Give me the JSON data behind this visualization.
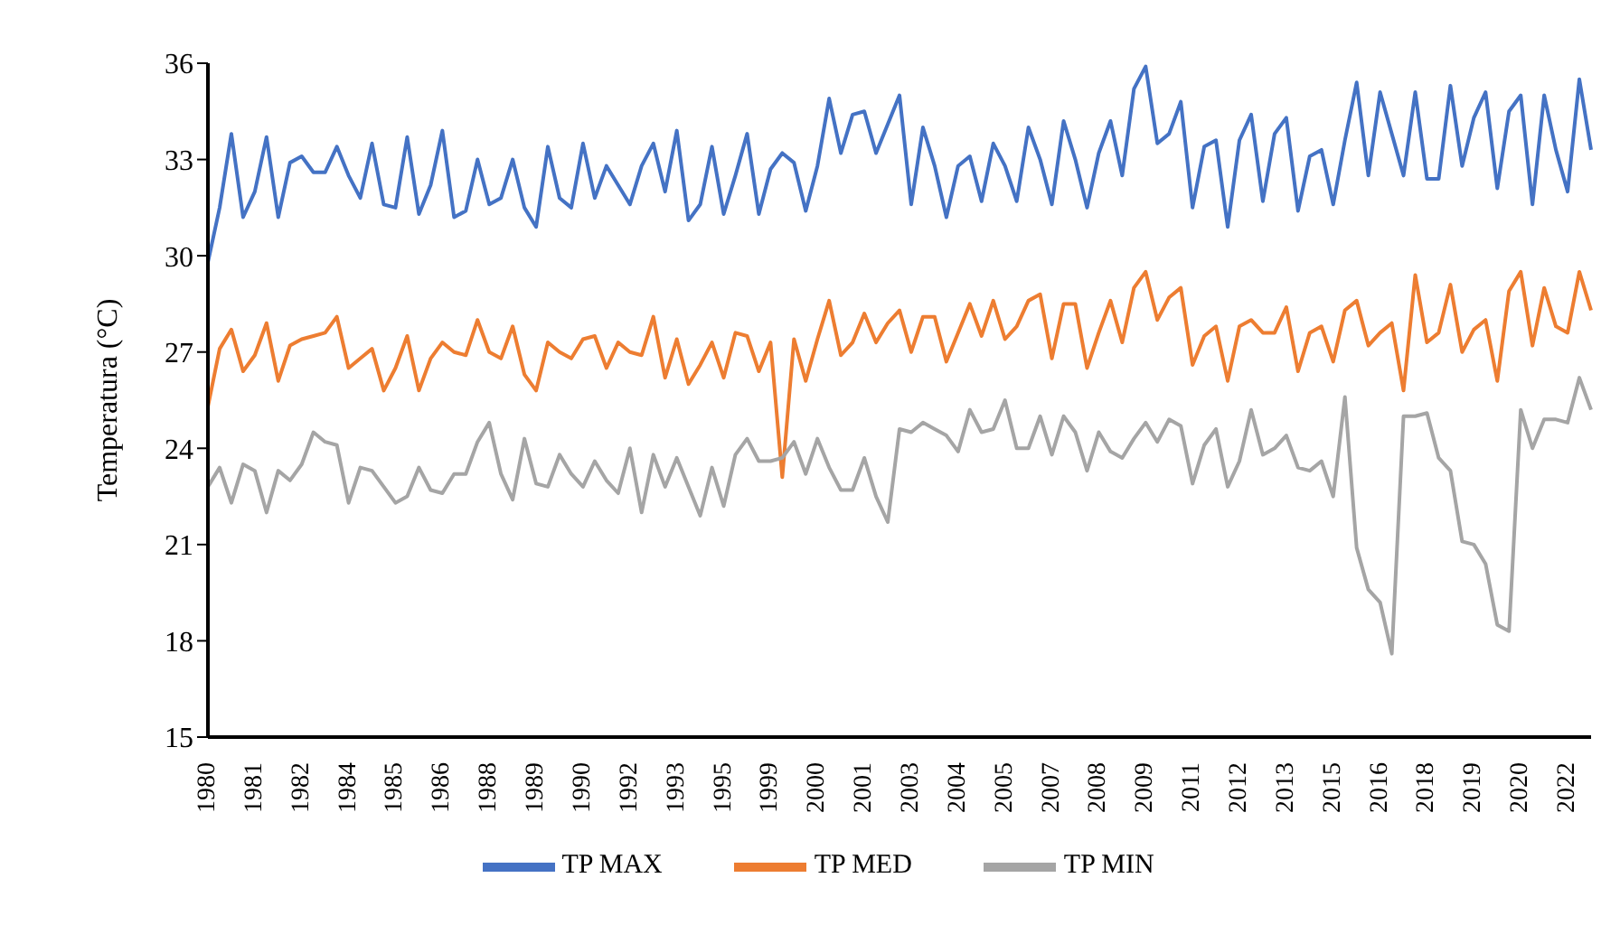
{
  "chart_data": {
    "type": "line",
    "ylabel": "Temperatura (°C)",
    "categories": [
      "1980",
      null,
      null,
      null,
      "1981",
      null,
      null,
      null,
      "1982",
      null,
      null,
      null,
      "1984",
      null,
      null,
      null,
      "1985",
      null,
      null,
      null,
      "1986",
      null,
      null,
      null,
      "1988",
      null,
      null,
      null,
      "1989",
      null,
      null,
      null,
      "1990",
      null,
      null,
      null,
      "1992",
      null,
      null,
      null,
      "1993",
      null,
      null,
      null,
      "1995",
      null,
      null,
      null,
      "1999",
      null,
      null,
      null,
      "2000",
      null,
      null,
      null,
      "2001",
      null,
      null,
      null,
      "2003",
      null,
      null,
      null,
      "2004",
      null,
      null,
      null,
      "2005",
      null,
      null,
      null,
      "2007",
      null,
      null,
      null,
      "2008",
      null,
      null,
      null,
      "2009",
      null,
      null,
      null,
      "2011",
      null,
      null,
      null,
      "2012",
      null,
      null,
      null,
      "2013",
      null,
      null,
      null,
      "2015",
      null,
      null,
      null,
      "2016",
      null,
      null,
      null,
      "2018",
      null,
      null,
      null,
      "2019",
      null,
      null,
      null,
      "2020",
      null,
      null,
      null,
      "2022",
      null,
      null
    ],
    "series": [
      {
        "name": "TP MAX",
        "color": "#4472c4",
        "values": [
          29.8,
          31.5,
          33.8,
          31.2,
          32.0,
          33.7,
          31.2,
          32.9,
          33.1,
          32.6,
          32.6,
          33.4,
          32.5,
          31.8,
          33.5,
          31.6,
          31.5,
          33.7,
          31.3,
          32.2,
          33.9,
          31.2,
          31.4,
          33.0,
          31.6,
          31.8,
          33.0,
          31.5,
          30.9,
          33.4,
          31.8,
          31.5,
          33.5,
          31.8,
          32.8,
          32.2,
          31.6,
          32.8,
          33.5,
          32.0,
          33.9,
          31.1,
          31.6,
          33.4,
          31.3,
          32.5,
          33.8,
          31.3,
          32.7,
          33.2,
          32.9,
          31.4,
          32.8,
          34.9,
          33.2,
          34.4,
          34.5,
          33.2,
          34.1,
          35.0,
          31.6,
          34.0,
          32.8,
          31.2,
          32.8,
          33.1,
          31.7,
          33.5,
          32.8,
          31.7,
          34.0,
          33.0,
          31.6,
          34.2,
          33.0,
          31.5,
          33.2,
          34.2,
          32.5,
          35.2,
          35.9,
          33.5,
          33.8,
          34.8,
          31.5,
          33.4,
          33.6,
          30.9,
          33.6,
          34.4,
          31.7,
          33.8,
          34.3,
          31.4,
          33.1,
          33.3,
          31.6,
          33.6,
          35.4,
          32.5,
          35.1,
          33.8,
          32.5,
          35.1,
          32.4,
          32.4,
          35.3,
          32.8,
          34.3,
          35.1,
          32.1,
          34.5,
          35.0,
          31.6,
          35.0,
          33.3,
          32.0,
          35.5,
          33.3
        ]
      },
      {
        "name": "TP MED",
        "color": "#ed7d31",
        "values": [
          25.3,
          27.1,
          27.7,
          26.4,
          26.9,
          27.9,
          26.1,
          27.2,
          27.4,
          27.5,
          27.6,
          28.1,
          26.5,
          26.8,
          27.1,
          25.8,
          26.5,
          27.5,
          25.8,
          26.8,
          27.3,
          27.0,
          26.9,
          28.0,
          27.0,
          26.8,
          27.8,
          26.3,
          25.8,
          27.3,
          27.0,
          26.8,
          27.4,
          27.5,
          26.5,
          27.3,
          27.0,
          26.9,
          28.1,
          26.2,
          27.4,
          26.0,
          26.6,
          27.3,
          26.2,
          27.6,
          27.5,
          26.4,
          27.3,
          23.1,
          27.4,
          26.1,
          27.4,
          28.6,
          26.9,
          27.3,
          28.2,
          27.3,
          27.9,
          28.3,
          27.0,
          28.1,
          28.1,
          26.7,
          27.6,
          28.5,
          27.5,
          28.6,
          27.4,
          27.8,
          28.6,
          28.8,
          26.8,
          28.5,
          28.5,
          26.5,
          27.6,
          28.6,
          27.3,
          29.0,
          29.5,
          28.0,
          28.7,
          29.0,
          26.6,
          27.5,
          27.8,
          26.1,
          27.8,
          28.0,
          27.6,
          27.6,
          28.4,
          26.4,
          27.6,
          27.8,
          26.7,
          28.3,
          28.6,
          27.2,
          27.6,
          27.9,
          25.8,
          29.4,
          27.3,
          27.6,
          29.1,
          27.0,
          27.7,
          28.0,
          26.1,
          28.9,
          29.5,
          27.2,
          29.0,
          27.8,
          27.6,
          29.5,
          28.3
        ]
      },
      {
        "name": "TP MIN",
        "color": "#a5a5a5",
        "values": [
          22.8,
          23.4,
          22.3,
          23.5,
          23.3,
          22.0,
          23.3,
          23.0,
          23.5,
          24.5,
          24.2,
          24.1,
          22.3,
          23.4,
          23.3,
          22.8,
          22.3,
          22.5,
          23.4,
          22.7,
          22.6,
          23.2,
          23.2,
          24.2,
          24.8,
          23.2,
          22.4,
          24.3,
          22.9,
          22.8,
          23.8,
          23.2,
          22.8,
          23.6,
          23.0,
          22.6,
          24.0,
          22.0,
          23.8,
          22.8,
          23.7,
          22.8,
          21.9,
          23.4,
          22.2,
          23.8,
          24.3,
          23.6,
          23.6,
          23.7,
          24.2,
          23.2,
          24.3,
          23.4,
          22.7,
          22.7,
          23.7,
          22.5,
          21.7,
          24.6,
          24.5,
          24.8,
          24.6,
          24.4,
          23.9,
          25.2,
          24.5,
          24.6,
          25.5,
          24.0,
          24.0,
          25.0,
          23.8,
          25.0,
          24.5,
          23.3,
          24.5,
          23.9,
          23.7,
          24.3,
          24.8,
          24.2,
          24.9,
          24.7,
          22.9,
          24.1,
          24.6,
          22.8,
          23.6,
          25.2,
          23.8,
          24.0,
          24.4,
          23.4,
          23.3,
          23.6,
          22.5,
          25.6,
          20.9,
          19.6,
          19.2,
          17.6,
          25.0,
          25.0,
          25.1,
          23.7,
          23.3,
          21.1,
          21.0,
          20.4,
          18.5,
          18.3,
          25.2,
          24.0,
          24.9,
          24.9,
          24.8,
          26.2,
          25.2
        ]
      }
    ],
    "ylim": [
      15,
      36
    ],
    "yticks": [
      15,
      18,
      21,
      24,
      27,
      30,
      33,
      36
    ],
    "grid": false,
    "legend": "bottom",
    "marker": "none",
    "line_style": "solid"
  }
}
